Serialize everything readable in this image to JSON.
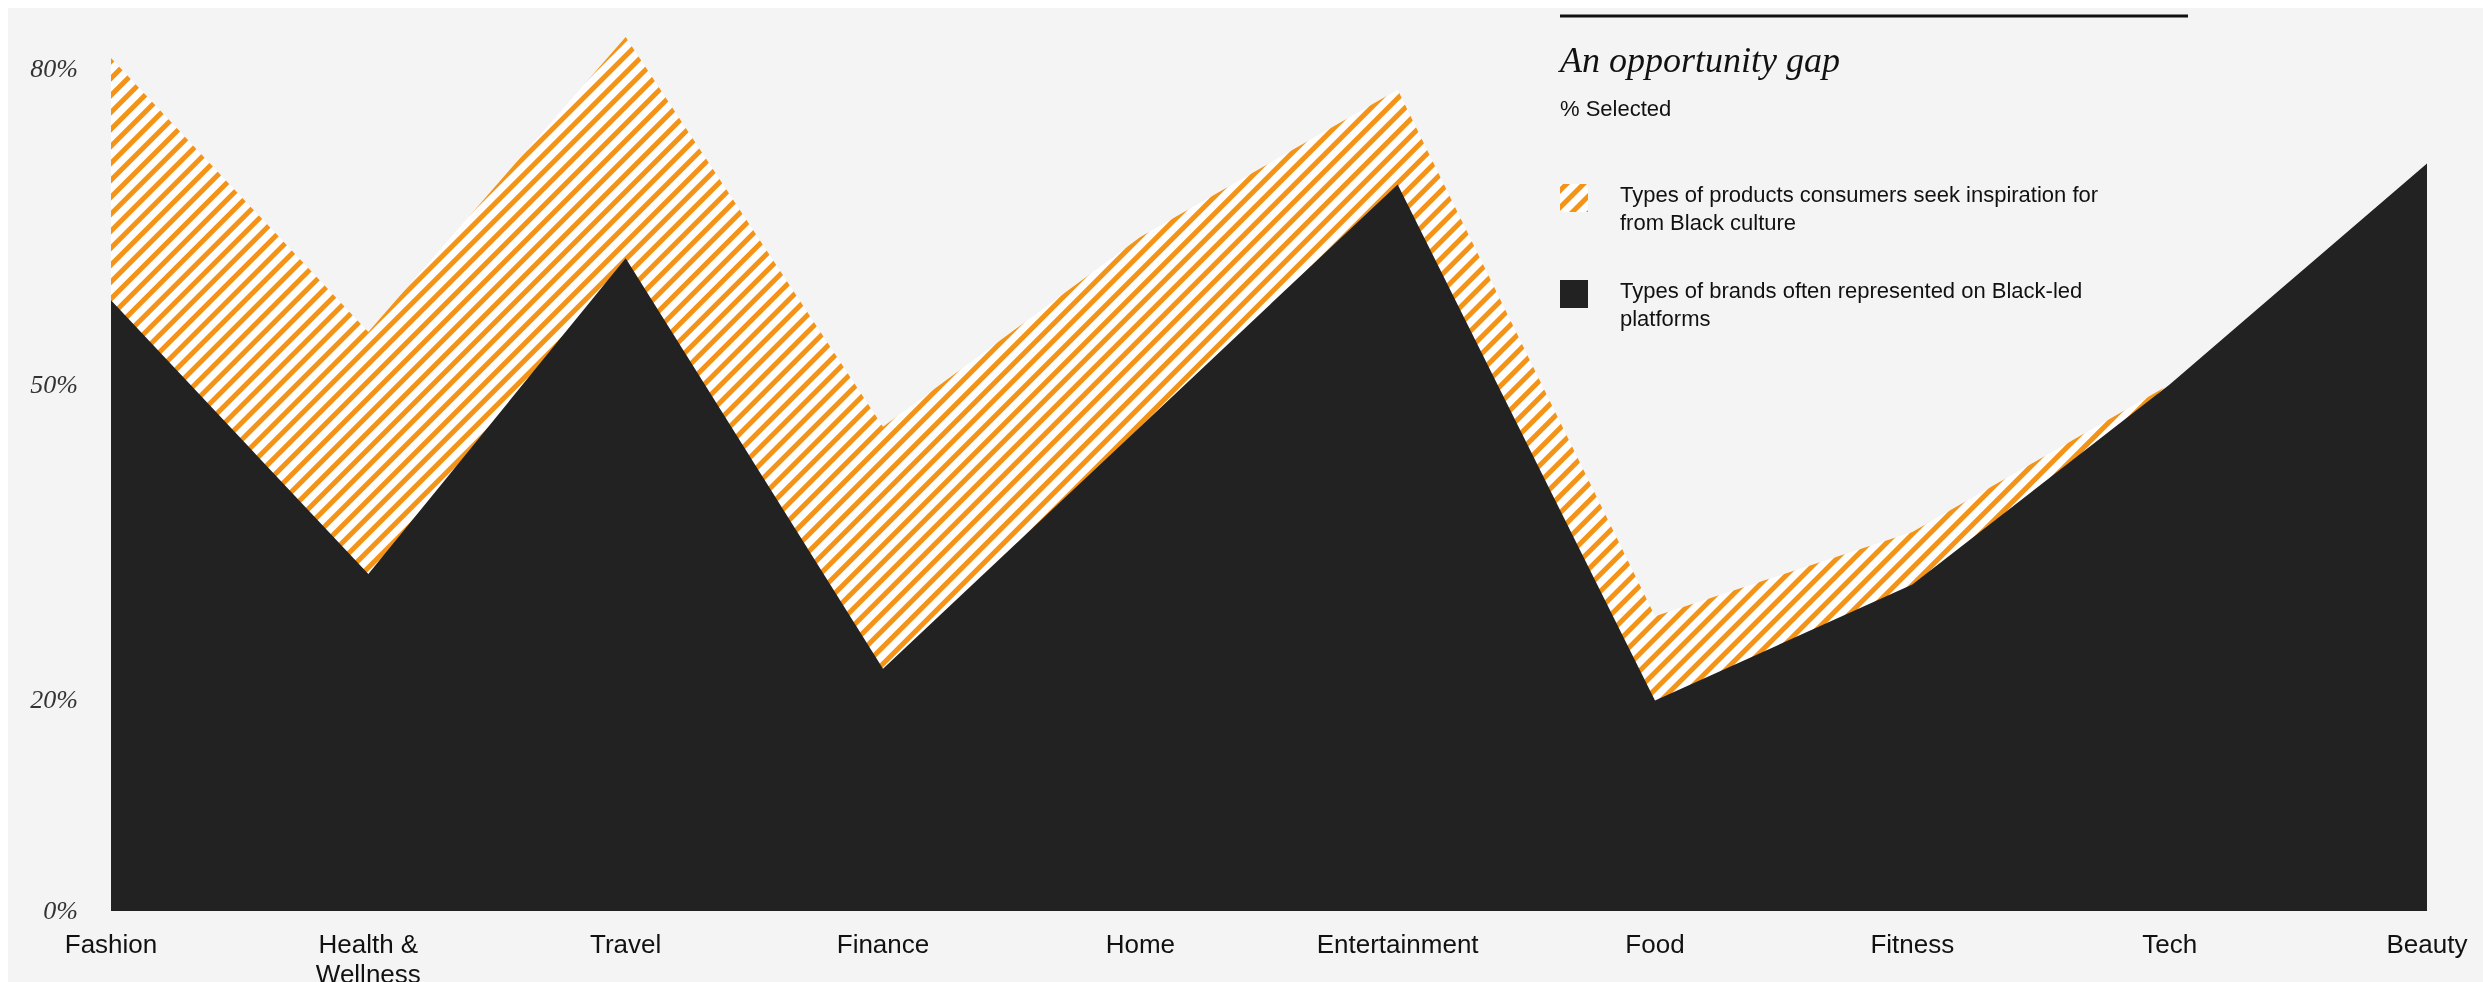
{
  "chart_data": {
    "type": "area",
    "title": "An opportunity gap",
    "subtitle": "% Selected",
    "categories": [
      "Fashion",
      "Health & Wellness",
      "Travel",
      "Finance",
      "Home",
      "Entertainment",
      "Food",
      "Fitness",
      "Tech",
      "Beauty"
    ],
    "series": [
      {
        "name": "Types of products consumers seek inspiration for from Black culture",
        "color": "#f39418",
        "values": [
          81,
          55,
          83,
          46,
          64,
          78,
          28,
          36,
          50,
          null
        ]
      },
      {
        "name": "Types of brands often represented on Black-led platforms",
        "color": "#222222",
        "values": [
          58,
          32,
          62,
          23,
          46,
          69,
          20,
          31,
          50,
          71
        ]
      }
    ],
    "ylim": [
      0,
      85
    ],
    "yticks": [
      {
        "value": 0,
        "label": "0%"
      },
      {
        "value": 20,
        "label": "20%"
      },
      {
        "value": 50,
        "label": "50%"
      },
      {
        "value": 80,
        "label": "80%"
      }
    ],
    "grid": false,
    "legend": "top right"
  }
}
